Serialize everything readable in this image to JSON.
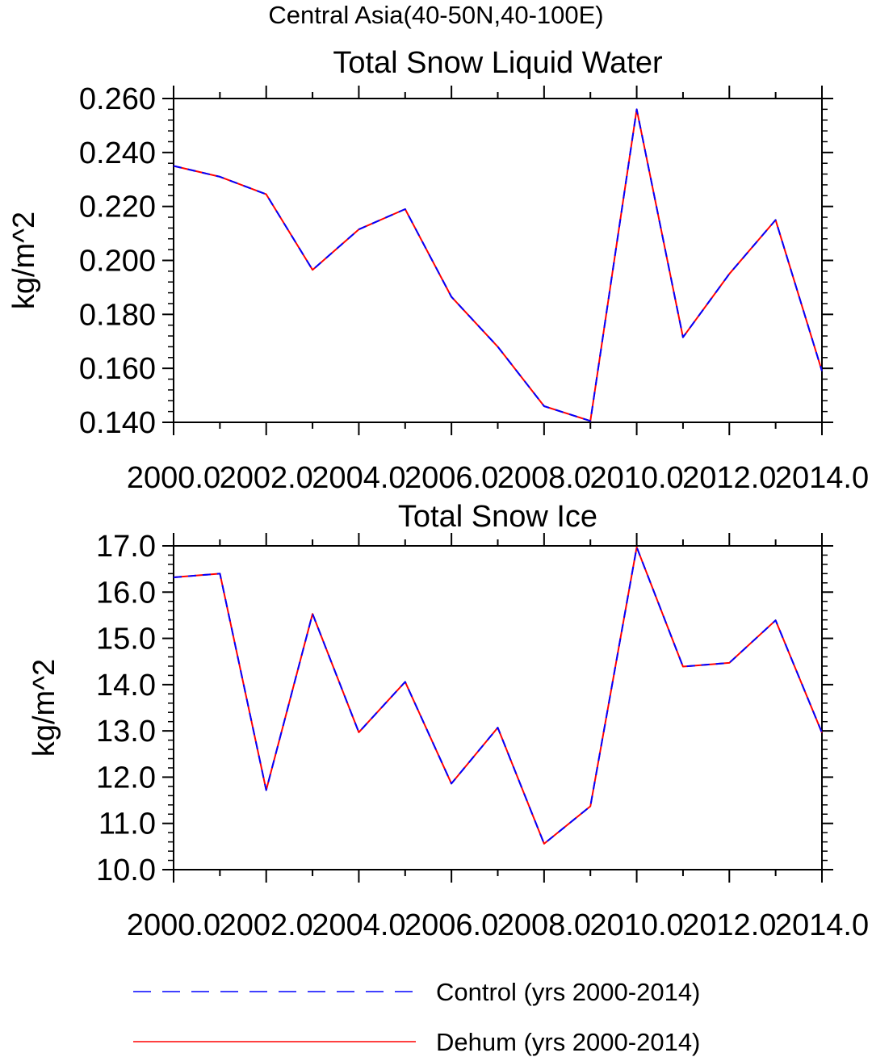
{
  "figure": {
    "title": "Central Asia(40-50N,40-100E)"
  },
  "chart_data": [
    {
      "type": "line",
      "title": "Total Snow Liquid Water",
      "xlabel": "",
      "ylabel": "kg/m^2",
      "xlim": [
        2000,
        2014
      ],
      "ylim": [
        0.14,
        0.26
      ],
      "x_ticks": [
        2000,
        2002,
        2004,
        2006,
        2008,
        2010,
        2012,
        2014
      ],
      "x_tick_labels": [
        "2000.0",
        "2002.0",
        "2004.0",
        "2006.0",
        "2008.0",
        "2010.0",
        "2012.0",
        "2014.0"
      ],
      "y_ticks": [
        0.14,
        0.16,
        0.18,
        0.2,
        0.22,
        0.24,
        0.26
      ],
      "y_tick_labels": [
        "0.140",
        "0.160",
        "0.180",
        "0.200",
        "0.220",
        "0.240",
        "0.260"
      ],
      "grid": false,
      "x": [
        2000,
        2001,
        2002,
        2003,
        2004,
        2005,
        2006,
        2007,
        2008,
        2009,
        2010,
        2011,
        2012,
        2013,
        2014
      ],
      "series": [
        {
          "name": "Control (yrs 2000-2014)",
          "color": "#0000ff",
          "style": "dashed",
          "values": [
            0.235,
            0.231,
            0.2245,
            0.1965,
            0.2115,
            0.219,
            0.1865,
            0.168,
            0.146,
            0.1405,
            0.256,
            0.1715,
            0.195,
            0.215,
            0.159
          ]
        },
        {
          "name": "Dehum (yrs 2000-2014)",
          "color": "#ff0000",
          "style": "solid",
          "values": [
            0.235,
            0.231,
            0.2245,
            0.1965,
            0.2115,
            0.219,
            0.1865,
            0.168,
            0.146,
            0.1405,
            0.256,
            0.1715,
            0.195,
            0.215,
            0.159
          ]
        }
      ]
    },
    {
      "type": "line",
      "title": "Total Snow Ice",
      "xlabel": "",
      "ylabel": "kg/m^2",
      "xlim": [
        2000,
        2014
      ],
      "ylim": [
        10,
        17
      ],
      "x_ticks": [
        2000,
        2002,
        2004,
        2006,
        2008,
        2010,
        2012,
        2014
      ],
      "x_tick_labels": [
        "2000.0",
        "2002.0",
        "2004.0",
        "2006.0",
        "2008.0",
        "2010.0",
        "2012.0",
        "2014.0"
      ],
      "y_ticks": [
        10,
        11,
        12,
        13,
        14,
        15,
        16,
        17
      ],
      "y_tick_labels": [
        "10.0",
        "11.0",
        "12.0",
        "13.0",
        "14.0",
        "15.0",
        "16.0",
        "17.0"
      ],
      "grid": false,
      "x": [
        2000,
        2001,
        2002,
        2003,
        2004,
        2005,
        2006,
        2007,
        2008,
        2009,
        2010,
        2011,
        2012,
        2013,
        2014
      ],
      "series": [
        {
          "name": "Control (yrs 2000-2014)",
          "color": "#0000ff",
          "style": "dashed",
          "values": [
            16.32,
            16.4,
            11.72,
            15.53,
            12.97,
            14.06,
            11.86,
            13.07,
            10.56,
            11.37,
            16.97,
            14.39,
            14.47,
            15.39,
            12.96
          ]
        },
        {
          "name": "Dehum (yrs 2000-2014)",
          "color": "#ff0000",
          "style": "solid",
          "values": [
            16.32,
            16.4,
            11.72,
            15.53,
            12.97,
            14.06,
            11.86,
            13.07,
            10.56,
            11.37,
            16.97,
            14.39,
            14.47,
            15.39,
            12.96
          ]
        }
      ]
    }
  ],
  "legend": {
    "placement": "bottom",
    "items": [
      {
        "label": "Control (yrs 2000-2014)",
        "color": "#0000ff",
        "style": "dashed"
      },
      {
        "label": "Dehum (yrs 2000-2014)",
        "color": "#ff0000",
        "style": "solid"
      }
    ]
  }
}
